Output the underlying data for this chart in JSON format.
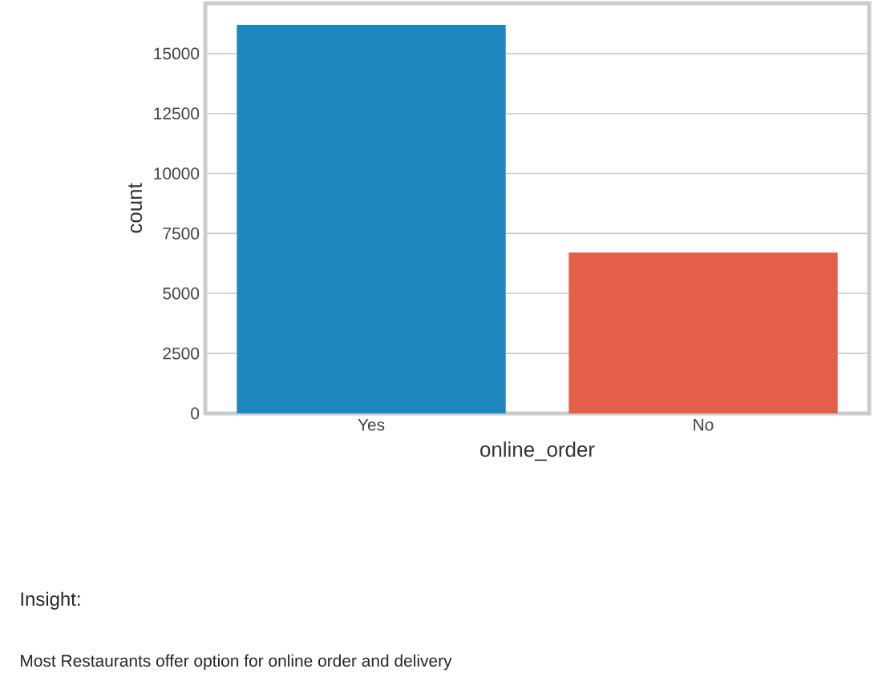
{
  "chart_data": {
    "type": "bar",
    "xlabel": "online_order",
    "ylabel": "count",
    "categories": [
      "Yes",
      "No"
    ],
    "values": [
      16200,
      6700
    ],
    "colors": [
      "#1b87bc",
      "#e35f47"
    ],
    "ylim": [
      0,
      17100
    ],
    "yticks": [
      0,
      2500,
      5000,
      7500,
      10000,
      12500,
      15000
    ],
    "grid": "y",
    "annotations": [
      "Insight:",
      "Most Restaurants offer option for online order and delivery"
    ]
  }
}
